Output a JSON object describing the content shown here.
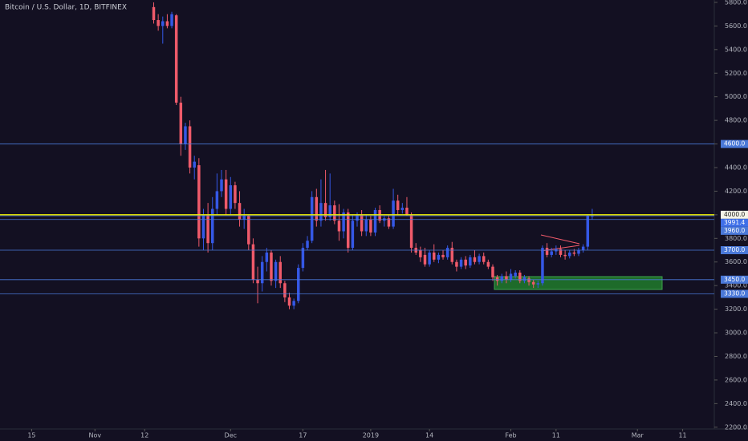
{
  "chart_data": {
    "type": "candlestick",
    "title": "Bitcoin / U.S. Dollar, 1D, BITFINEX",
    "up_color": "#3558e6",
    "down_color": "#ef5a6a",
    "candles": [
      [
        5760,
        5800,
        5620,
        5650
      ],
      [
        5650,
        5700,
        5560,
        5600
      ],
      [
        5600,
        5680,
        5450,
        5640
      ],
      [
        5640,
        5700,
        5580,
        5600
      ],
      [
        5600,
        5720,
        5580,
        5700
      ],
      [
        5690,
        5700,
        4930,
        4950
      ],
      [
        4950,
        5000,
        4500,
        4600
      ],
      [
        4600,
        4780,
        4550,
        4750
      ],
      [
        4750,
        4800,
        4350,
        4400
      ],
      [
        4400,
        4500,
        4300,
        4450
      ],
      [
        4420,
        4480,
        3730,
        3800
      ],
      [
        3800,
        4050,
        3700,
        4000
      ],
      [
        4000,
        4100,
        3680,
        3760
      ],
      [
        3760,
        4150,
        3700,
        4050
      ],
      [
        4050,
        4350,
        4000,
        4200
      ],
      [
        4200,
        4380,
        4150,
        4300
      ],
      [
        4300,
        4380,
        4000,
        4050
      ],
      [
        4050,
        4320,
        4000,
        4250
      ],
      [
        4250,
        4280,
        4050,
        4100
      ],
      [
        4100,
        4200,
        3900,
        3960
      ],
      [
        3960,
        4050,
        3880,
        3990
      ],
      [
        3990,
        4000,
        3700,
        3750
      ],
      [
        3750,
        3800,
        3420,
        3450
      ],
      [
        3450,
        3560,
        3250,
        3420
      ],
      [
        3420,
        3650,
        3350,
        3600
      ],
      [
        3600,
        3720,
        3520,
        3680
      ],
      [
        3680,
        3700,
        3400,
        3440
      ],
      [
        3440,
        3620,
        3380,
        3600
      ],
      [
        3600,
        3650,
        3380,
        3420
      ],
      [
        3420,
        3440,
        3260,
        3300
      ],
      [
        3300,
        3340,
        3200,
        3230
      ],
      [
        3230,
        3290,
        3200,
        3270
      ],
      [
        3270,
        3580,
        3250,
        3550
      ],
      [
        3550,
        3760,
        3520,
        3720
      ],
      [
        3720,
        3820,
        3700,
        3780
      ],
      [
        3780,
        4200,
        3760,
        4150
      ],
      [
        4150,
        4220,
        3900,
        3950
      ],
      [
        3950,
        4300,
        3900,
        4100
      ],
      [
        4100,
        4380,
        3950,
        3980
      ],
      [
        3980,
        4350,
        3950,
        4080
      ],
      [
        4080,
        4120,
        3920,
        3950
      ],
      [
        3950,
        4090,
        3780,
        3860
      ],
      [
        3860,
        4050,
        3800,
        4020
      ],
      [
        4020,
        4050,
        3680,
        3720
      ],
      [
        3720,
        4000,
        3700,
        3950
      ],
      [
        3950,
        4020,
        3900,
        4000
      ],
      [
        4000,
        4040,
        3820,
        3860
      ],
      [
        3860,
        4000,
        3820,
        3960
      ],
      [
        3960,
        3990,
        3820,
        3850
      ],
      [
        3850,
        4060,
        3820,
        4040
      ],
      [
        4040,
        4080,
        3930,
        3950
      ],
      [
        3950,
        3990,
        3900,
        3970
      ],
      [
        3970,
        4000,
        3880,
        3900
      ],
      [
        3900,
        4220,
        3880,
        4120
      ],
      [
        4120,
        4170,
        4000,
        4040
      ],
      [
        4040,
        4100,
        4010,
        4060
      ],
      [
        4060,
        4150,
        3990,
        4000
      ],
      [
        4000,
        4020,
        3680,
        3720
      ],
      [
        3720,
        3760,
        3660,
        3680
      ],
      [
        3700,
        3730,
        3600,
        3640
      ],
      [
        3660,
        3720,
        3560,
        3580
      ],
      [
        3580,
        3700,
        3560,
        3680
      ],
      [
        3680,
        3750,
        3600,
        3620
      ],
      [
        3620,
        3680,
        3590,
        3660
      ],
      [
        3660,
        3700,
        3620,
        3640
      ],
      [
        3640,
        3740,
        3620,
        3720
      ],
      [
        3720,
        3770,
        3580,
        3600
      ],
      [
        3600,
        3620,
        3520,
        3560
      ],
      [
        3560,
        3640,
        3540,
        3620
      ],
      [
        3620,
        3650,
        3540,
        3570
      ],
      [
        3570,
        3660,
        3550,
        3640
      ],
      [
        3640,
        3700,
        3580,
        3600
      ],
      [
        3600,
        3670,
        3580,
        3650
      ],
      [
        3650,
        3680,
        3580,
        3600
      ],
      [
        3600,
        3620,
        3540,
        3560
      ],
      [
        3560,
        3580,
        3440,
        3470
      ],
      [
        3470,
        3490,
        3400,
        3440
      ],
      [
        3440,
        3500,
        3420,
        3480
      ],
      [
        3480,
        3520,
        3420,
        3450
      ],
      [
        3450,
        3540,
        3430,
        3500
      ],
      [
        3480,
        3530,
        3460,
        3510
      ],
      [
        3510,
        3530,
        3420,
        3440
      ],
      [
        3440,
        3490,
        3420,
        3470
      ],
      [
        3460,
        3480,
        3400,
        3430
      ],
      [
        3430,
        3450,
        3380,
        3410
      ],
      [
        3410,
        3440,
        3380,
        3420
      ],
      [
        3420,
        3740,
        3400,
        3720
      ],
      [
        3720,
        3760,
        3640,
        3660
      ],
      [
        3660,
        3720,
        3640,
        3690
      ],
      [
        3690,
        3740,
        3660,
        3710
      ],
      [
        3710,
        3740,
        3640,
        3660
      ],
      [
        3660,
        3700,
        3620,
        3650
      ],
      [
        3650,
        3700,
        3630,
        3680
      ],
      [
        3680,
        3710,
        3650,
        3670
      ],
      [
        3670,
        3720,
        3650,
        3700
      ],
      [
        3700,
        3750,
        3680,
        3730
      ],
      [
        3730,
        4000,
        3700,
        3990
      ],
      [
        3990,
        4050,
        3960,
        3991.4
      ]
    ],
    "xlim": [
      -34,
      124
    ],
    "xticks": [
      {
        "value": -27,
        "label": "15"
      },
      {
        "value": -13,
        "label": "Nov"
      },
      {
        "value": -2,
        "label": "12"
      },
      {
        "value": 17,
        "label": "Dec"
      },
      {
        "value": 33,
        "label": "17"
      },
      {
        "value": 48,
        "label": "2019"
      },
      {
        "value": 61,
        "label": "14"
      },
      {
        "value": 79,
        "label": "Feb"
      },
      {
        "value": 89,
        "label": "11"
      },
      {
        "value": 107,
        "label": "Mar"
      },
      {
        "value": 117,
        "label": "11"
      }
    ],
    "ylim": [
      2185,
      5820
    ],
    "yticks": [
      {
        "value": 2200,
        "label": "2200.0"
      },
      {
        "value": 2400,
        "label": "2400.0"
      },
      {
        "value": 2600,
        "label": "2600.0"
      },
      {
        "value": 2800,
        "label": "2800.0"
      },
      {
        "value": 3000,
        "label": "3000.0"
      },
      {
        "value": 3200,
        "label": "3200.0"
      },
      {
        "value": 3400,
        "label": "3400.0"
      },
      {
        "value": 3600,
        "label": "3600.0"
      },
      {
        "value": 3800,
        "label": "3800.0"
      },
      {
        "value": 4000,
        "label": "4000.0"
      },
      {
        "value": 4200,
        "label": "4200.0"
      },
      {
        "value": 4400,
        "label": "4400.0"
      },
      {
        "value": 4600,
        "label": "4600.0"
      },
      {
        "value": 4800,
        "label": "4800.0"
      },
      {
        "value": 5000,
        "label": "5000.0"
      },
      {
        "value": 5200,
        "label": "5200.0"
      },
      {
        "value": 5400,
        "label": "5400.0"
      },
      {
        "value": 5600,
        "label": "5600.0"
      },
      {
        "value": 5800,
        "label": "5800.0"
      }
    ],
    "levels": [
      {
        "value": 4600,
        "label": "4600.0",
        "color": "#4a78d8"
      },
      {
        "value": 4000,
        "label": "4000.0",
        "color": "#f2f200"
      },
      {
        "value": 3991.4,
        "label": "3991.4",
        "color": "#3f6fe8"
      },
      {
        "value": 3960,
        "label": "3960.0",
        "color": "#4a78d8"
      },
      {
        "value": 3700,
        "label": "3700.0",
        "color": "#4a78d8"
      },
      {
        "value": 3450,
        "label": "3450.0",
        "color": "#4a78d8"
      },
      {
        "value": 3330,
        "label": "3330.0",
        "color": "#4a78d8"
      }
    ]
  }
}
